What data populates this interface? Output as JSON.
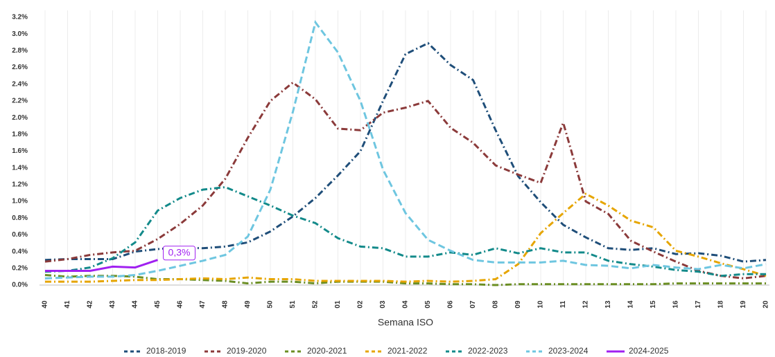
{
  "chart_data": {
    "type": "line",
    "x_label": "Semana ISO",
    "categories": [
      "40",
      "41",
      "42",
      "43",
      "44",
      "45",
      "46",
      "47",
      "48",
      "49",
      "50",
      "51",
      "52",
      "01",
      "02",
      "03",
      "04",
      "05",
      "06",
      "07",
      "08",
      "09",
      "10",
      "11",
      "12",
      "13",
      "14",
      "15",
      "16",
      "17",
      "18",
      "19",
      "20"
    ],
    "ylim": [
      0,
      3.2
    ],
    "yticks": [
      {
        "value": 0,
        "label": "0.0%"
      },
      {
        "value": 0.2,
        "label": "0.2%"
      },
      {
        "value": 0.4,
        "label": "0.4%"
      },
      {
        "value": 0.6,
        "label": "0.6%"
      },
      {
        "value": 0.8,
        "label": "0.8%"
      },
      {
        "value": 1.0,
        "label": "1.0%"
      },
      {
        "value": 1.2,
        "label": "1.2%"
      },
      {
        "value": 1.4,
        "label": "1.4%"
      },
      {
        "value": 1.6,
        "label": "1.6%"
      },
      {
        "value": 1.8,
        "label": "1.8%"
      },
      {
        "value": 2.0,
        "label": "2.0%"
      },
      {
        "value": 2.2,
        "label": "2.2%"
      },
      {
        "value": 2.4,
        "label": "2.4%"
      },
      {
        "value": 2.6,
        "label": "2.6%"
      },
      {
        "value": 2.8,
        "label": "2.8%"
      },
      {
        "value": 3.0,
        "label": "3.0%"
      },
      {
        "value": 3.2,
        "label": "3.2%"
      }
    ],
    "grid": "x",
    "legend": "bottom",
    "series": [
      {
        "name": "2018-2019",
        "color": "#1f4e79",
        "style": "dashdot",
        "values": [
          0.3,
          0.31,
          0.31,
          0.31,
          0.4,
          0.43,
          0.45,
          0.44,
          0.46,
          0.51,
          0.64,
          0.82,
          1.04,
          1.31,
          1.6,
          2.2,
          2.76,
          2.89,
          2.63,
          2.45,
          1.85,
          1.3,
          0.99,
          0.72,
          0.57,
          0.44,
          0.42,
          0.44,
          0.37,
          0.38,
          0.35,
          0.28,
          0.3
        ]
      },
      {
        "name": "2019-2020",
        "color": "#8b3a3a",
        "style": "dashdot",
        "values": [
          0.28,
          0.31,
          0.36,
          0.39,
          0.41,
          0.55,
          0.73,
          0.95,
          1.27,
          1.76,
          2.2,
          2.42,
          2.22,
          1.87,
          1.85,
          2.06,
          2.12,
          2.2,
          1.88,
          1.7,
          1.43,
          1.32,
          1.22,
          1.94,
          1.0,
          0.85,
          0.53,
          0.4,
          0.28,
          0.17,
          0.11,
          0.08,
          0.11
        ]
      },
      {
        "name": "2020-2021",
        "color": "#6b8e23",
        "style": "dashdot",
        "values": [
          0.12,
          0.1,
          0.11,
          0.11,
          0.1,
          0.07,
          0.07,
          0.06,
          0.05,
          0.02,
          0.04,
          0.04,
          0.02,
          0.04,
          0.04,
          0.04,
          0.02,
          0.02,
          0.01,
          0.01,
          0.0,
          0.01,
          0.01,
          0.01,
          0.01,
          0.01,
          0.01,
          0.01,
          0.02,
          0.02,
          0.02,
          0.02,
          0.02
        ]
      },
      {
        "name": "2021-2022",
        "color": "#e6a500",
        "style": "dashdot",
        "values": [
          0.04,
          0.04,
          0.04,
          0.05,
          0.06,
          0.06,
          0.07,
          0.08,
          0.07,
          0.09,
          0.07,
          0.07,
          0.05,
          0.05,
          0.05,
          0.05,
          0.04,
          0.05,
          0.04,
          0.05,
          0.07,
          0.25,
          0.62,
          0.86,
          1.09,
          0.95,
          0.77,
          0.69,
          0.41,
          0.34,
          0.26,
          0.19,
          0.11
        ]
      },
      {
        "name": "2022-2023",
        "color": "#138a8a",
        "style": "dashdot",
        "values": [
          0.16,
          0.17,
          0.21,
          0.32,
          0.51,
          0.89,
          1.04,
          1.14,
          1.17,
          1.06,
          0.95,
          0.83,
          0.74,
          0.56,
          0.46,
          0.44,
          0.34,
          0.34,
          0.39,
          0.36,
          0.44,
          0.38,
          0.44,
          0.39,
          0.39,
          0.29,
          0.25,
          0.22,
          0.18,
          0.16,
          0.11,
          0.13,
          0.13
        ]
      },
      {
        "name": "2023-2024",
        "color": "#6ec6e0",
        "style": "dash",
        "values": [
          0.08,
          0.09,
          0.1,
          0.1,
          0.12,
          0.17,
          0.23,
          0.29,
          0.36,
          0.58,
          1.14,
          2.07,
          3.14,
          2.78,
          2.2,
          1.38,
          0.86,
          0.54,
          0.41,
          0.3,
          0.27,
          0.27,
          0.27,
          0.29,
          0.24,
          0.23,
          0.2,
          0.24,
          0.21,
          0.19,
          0.24,
          0.2,
          0.25
        ]
      },
      {
        "name": "2024-2025",
        "color": "#a020f0",
        "style": "solid",
        "values": [
          0.17,
          0.17,
          0.17,
          0.22,
          0.21,
          0.3,
          null,
          null,
          null,
          null,
          null,
          null,
          null,
          null,
          null,
          null,
          null,
          null,
          null,
          null,
          null,
          null,
          null,
          null,
          null,
          null,
          null,
          null,
          null,
          null,
          null,
          null,
          null
        ],
        "value_labels": [
          null,
          null,
          null,
          null,
          null,
          "0,3%",
          null,
          null,
          null,
          null,
          null,
          null,
          null,
          null,
          null,
          null,
          null,
          null,
          null,
          null,
          null,
          null,
          null,
          null,
          null,
          null,
          null,
          null,
          null,
          null,
          null,
          null,
          null
        ]
      }
    ]
  }
}
